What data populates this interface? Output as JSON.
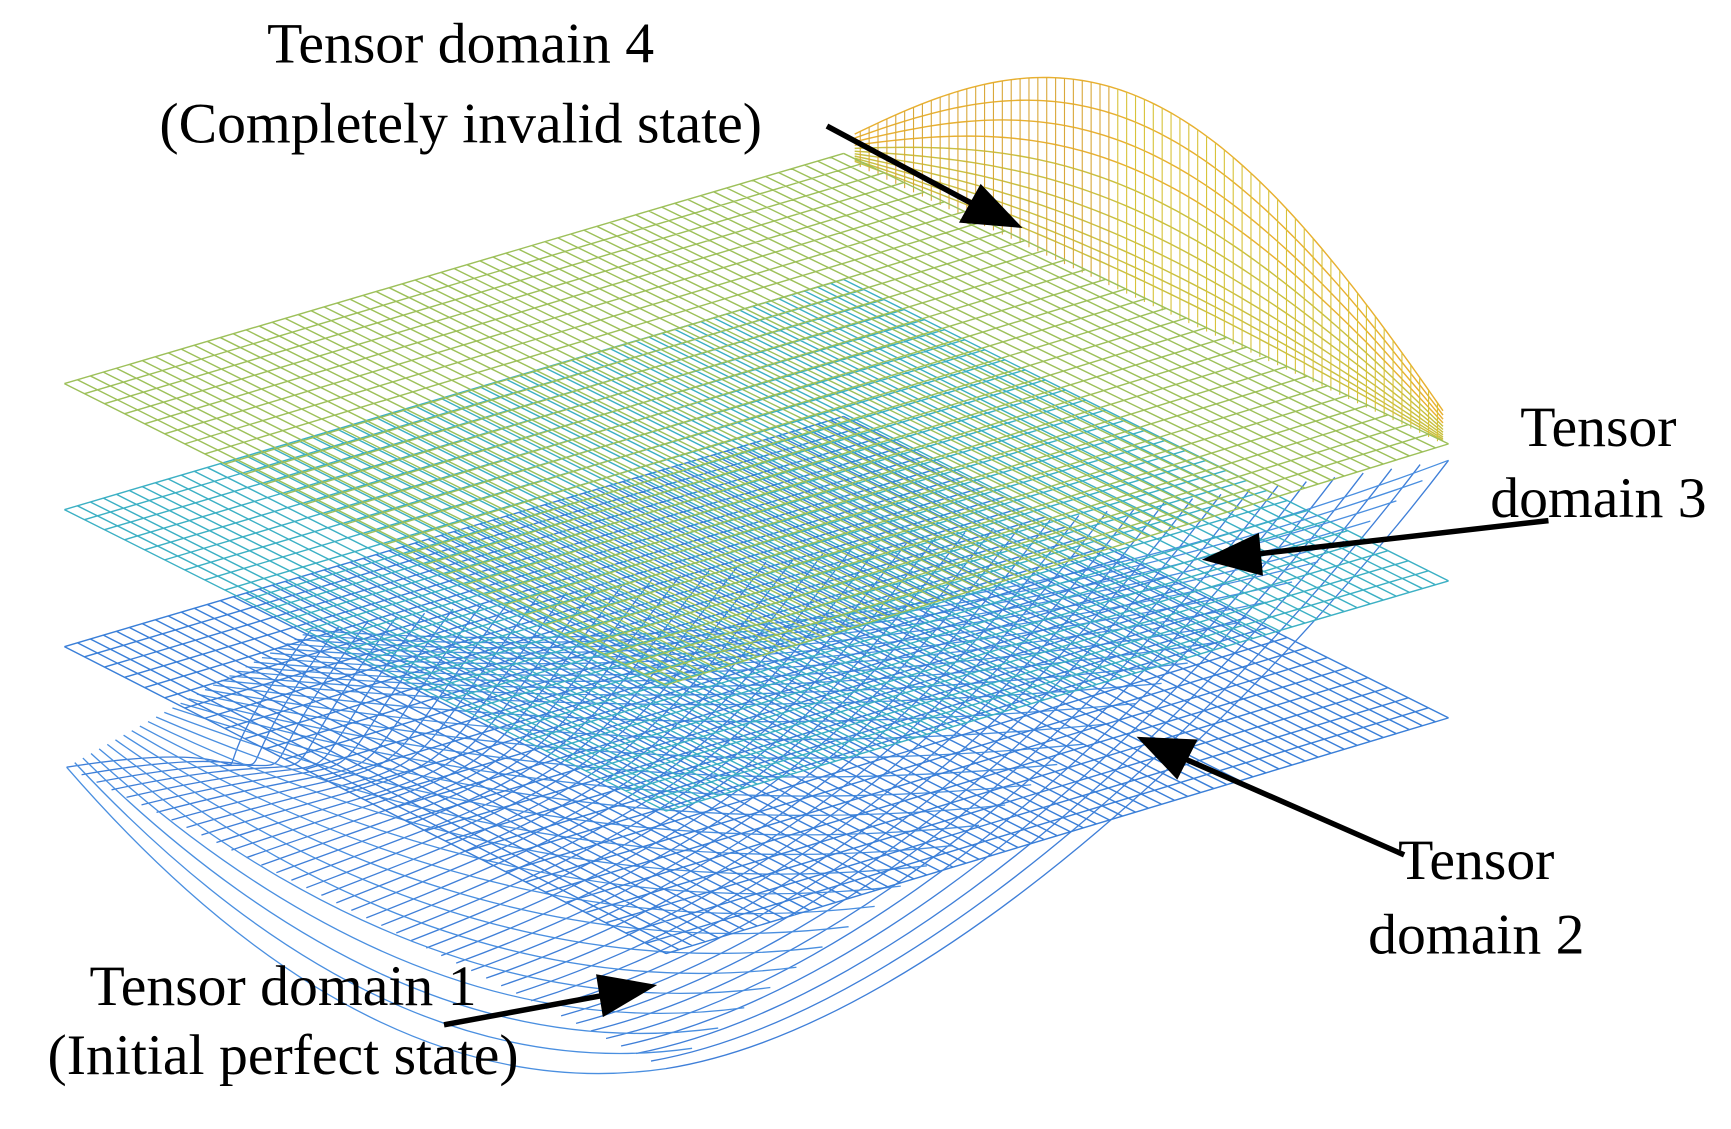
{
  "annotations": [
    {
      "lines": [
        "Tensor domain 4",
        "(Completely invalid state)"
      ]
    },
    {
      "lines": [
        "Tensor",
        "domain 3"
      ]
    },
    {
      "lines": [
        "Tensor",
        "domain 2"
      ]
    },
    {
      "lines": [
        "Tensor domain 1",
        "(Initial perfect state)"
      ]
    }
  ]
}
